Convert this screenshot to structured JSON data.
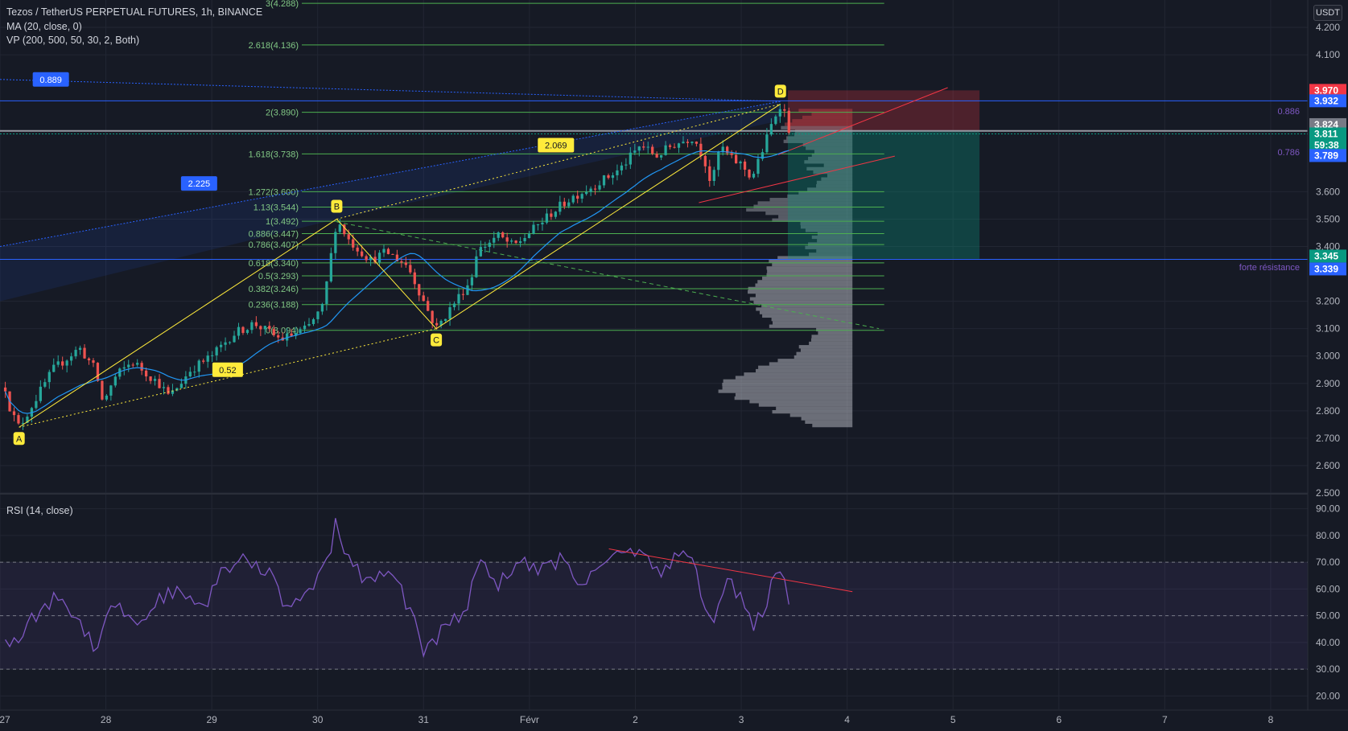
{
  "header": {
    "symbol_line": "Tezos / TetherUS PERPETUAL FUTURES, 1h, BINANCE",
    "indicator_ma": "MA (20, close, 0)",
    "indicator_vp": "VP (200, 500, 50, 30, 2, Both)",
    "currency_button": "USDT",
    "rsi_label": "RSI (14, close)"
  },
  "chart_data": {
    "type": "candlestick",
    "price_axis_ticks": [
      "4.200",
      "4.100",
      "3.600",
      "3.500",
      "3.400",
      "3.200",
      "3.100",
      "3.000",
      "2.900",
      "2.800",
      "2.700",
      "2.600",
      "2.500"
    ],
    "price_axis_values": [
      4.2,
      4.1,
      3.6,
      3.5,
      3.4,
      3.2,
      3.1,
      3.0,
      2.9,
      2.8,
      2.7,
      2.6,
      2.5
    ],
    "price_ylim": [
      2.5,
      4.3
    ],
    "rsi_axis_ticks": [
      "90.00",
      "80.00",
      "70.00",
      "60.00",
      "50.00",
      "40.00",
      "30.00",
      "20.00"
    ],
    "rsi_axis_values": [
      90,
      80,
      70,
      60,
      50,
      40,
      30,
      20
    ],
    "rsi_ylim": [
      15,
      95
    ],
    "rsi_band": [
      30,
      70
    ],
    "x_ticks": [
      "27",
      "28",
      "29",
      "30",
      "31",
      "Févr",
      "2",
      "3",
      "4",
      "5",
      "6",
      "7",
      "8"
    ],
    "x_tick_values": [
      0,
      1,
      2,
      3,
      4,
      5,
      6,
      7,
      8,
      9,
      10,
      11,
      12
    ],
    "x_range": [
      0.0,
      12.35
    ],
    "price_badges": [
      {
        "label": "3.970",
        "value": 3.97,
        "color": "#f23645"
      },
      {
        "label": "3.932",
        "value": 3.932,
        "color": "#2962ff"
      },
      {
        "label": "3.824",
        "value": 3.845,
        "color": "#787b86"
      },
      {
        "label": "3.811",
        "value": 3.811,
        "color": "#089981"
      },
      {
        "label": "59:38",
        "value": 3.77,
        "color": "#089981"
      },
      {
        "label": "3.789",
        "value": 3.732,
        "color": "#2962ff"
      },
      {
        "label": "3.345",
        "value": 3.365,
        "color": "#089981"
      },
      {
        "label": "3.339",
        "value": 3.318,
        "color": "#2962ff"
      }
    ],
    "fibonacci_levels": [
      {
        "label": "3(4.288)",
        "value": 4.288
      },
      {
        "label": "2.618(4.136)",
        "value": 4.136
      },
      {
        "label": "2(3.890)",
        "value": 3.89
      },
      {
        "label": "1.618(3.738)",
        "value": 3.738
      },
      {
        "label": "1.272(3.600)",
        "value": 3.6
      },
      {
        "label": "1.13(3.544)",
        "value": 3.544
      },
      {
        "label": "1(3.492)",
        "value": 3.492
      },
      {
        "label": "0.886(3.447)",
        "value": 3.447
      },
      {
        "label": "0.786(3.407)",
        "value": 3.407
      },
      {
        "label": "0.618(3.340)",
        "value": 3.34
      },
      {
        "label": "0.5(3.293)",
        "value": 3.293
      },
      {
        "label": "0.382(3.246)",
        "value": 3.246
      },
      {
        "label": "0.236(3.188)",
        "value": 3.188
      },
      {
        "label": "0(3.094)",
        "value": 3.094
      }
    ],
    "harmonic_points": [
      {
        "label": "A",
        "x": 0.18,
        "price": 2.74
      },
      {
        "label": "B",
        "x": 3.18,
        "price": 3.5
      },
      {
        "label": "C",
        "x": 4.12,
        "price": 3.1
      },
      {
        "label": "D",
        "x": 7.37,
        "price": 3.92
      }
    ],
    "ratio_labels": [
      {
        "label": "0.889",
        "x": 0.48,
        "price": 4.01,
        "color": "#2962ff"
      },
      {
        "label": "2.225",
        "x": 1.88,
        "price": 3.63,
        "color": "#2962ff"
      },
      {
        "label": "2.069",
        "x": 5.25,
        "price": 3.77,
        "color": "#ffeb3b"
      },
      {
        "label": "0.52",
        "x": 2.15,
        "price": 2.95,
        "color": "#ffeb3b"
      }
    ],
    "right_annotations": [
      {
        "label": "0.886",
        "price": 3.895
      },
      {
        "label": "0.786",
        "price": 3.745
      },
      {
        "label": "forte résistance",
        "price": 3.325
      }
    ],
    "horizontal_lines": [
      {
        "price": 3.932,
        "color": "#2962ff"
      },
      {
        "price": 3.353,
        "color": "#2962ff"
      },
      {
        "price": 3.811,
        "color": "#089981"
      }
    ],
    "rsi_trendline": {
      "x": [
        5.75,
        8.05
      ],
      "values": [
        75,
        59
      ]
    },
    "price_trendline": {
      "x": [
        7.35,
        8.95
      ],
      "price": [
        3.735,
        3.98
      ]
    }
  }
}
